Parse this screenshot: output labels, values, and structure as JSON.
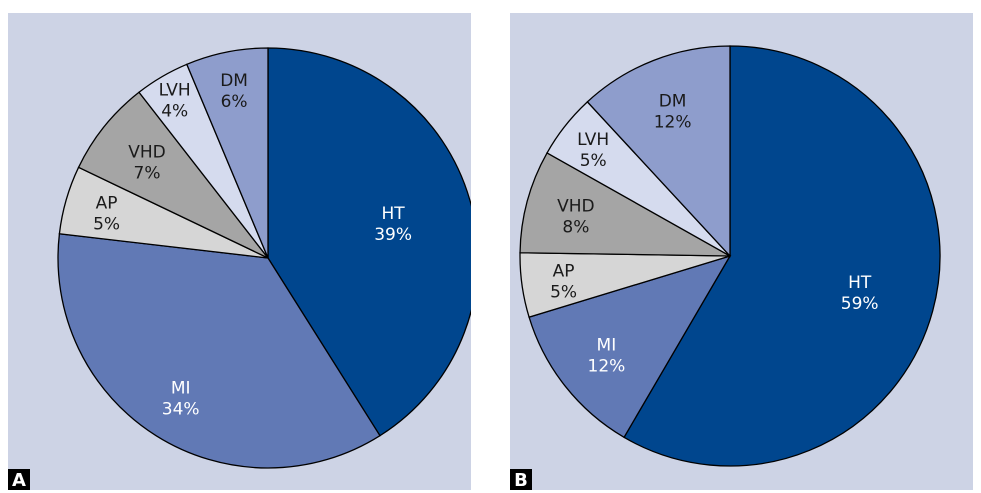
{
  "chart_data": [
    {
      "type": "pie",
      "panel_label": "A",
      "start": "12 o'clock",
      "direction": "clockwise",
      "slices": [
        {
          "label": "HT",
          "value": 39,
          "value_label": "39%",
          "color": "#00468e",
          "text_color": "#ffffff"
        },
        {
          "label": "MI",
          "value": 34,
          "value_label": "34%",
          "color": "#6179b5",
          "text_color": "#ffffff"
        },
        {
          "label": "AP",
          "value": 5,
          "value_label": "5%",
          "color": "#d6d6d6",
          "text_color": "#1a1a1a"
        },
        {
          "label": "VHD",
          "value": 7,
          "value_label": "7%",
          "color": "#a5a5a5",
          "text_color": "#1a1a1a"
        },
        {
          "label": "LVH",
          "value": 4,
          "value_label": "4%",
          "color": "#d5dbee",
          "text_color": "#1a1a1a"
        },
        {
          "label": "DM",
          "value": 6,
          "value_label": "6%",
          "color": "#8e9dcc",
          "text_color": "#1a1a1a"
        }
      ]
    },
    {
      "type": "pie",
      "panel_label": "B",
      "start": "12 o'clock",
      "direction": "clockwise",
      "slices": [
        {
          "label": "HT",
          "value": 59,
          "value_label": "59%",
          "color": "#00468e",
          "text_color": "#ffffff"
        },
        {
          "label": "MI",
          "value": 12,
          "value_label": "12%",
          "color": "#6179b5",
          "text_color": "#ffffff"
        },
        {
          "label": "AP",
          "value": 5,
          "value_label": "5%",
          "color": "#d6d6d6",
          "text_color": "#1a1a1a"
        },
        {
          "label": "VHD",
          "value": 8,
          "value_label": "8%",
          "color": "#a5a5a5",
          "text_color": "#1a1a1a"
        },
        {
          "label": "LVH",
          "value": 5,
          "value_label": "5%",
          "color": "#d5dbee",
          "text_color": "#1a1a1a"
        },
        {
          "label": "DM",
          "value": 12,
          "value_label": "12%",
          "color": "#8e9dcc",
          "text_color": "#1a1a1a"
        }
      ]
    }
  ],
  "colors": {
    "panel_background": "#cdd3e5",
    "badge_background": "#000000",
    "outline": "#000000"
  }
}
